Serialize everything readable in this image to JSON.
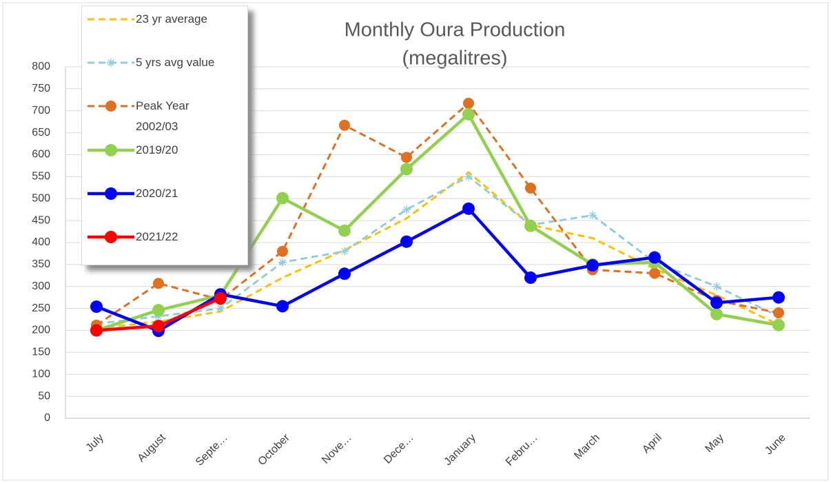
{
  "chart_data": {
    "type": "line",
    "title": [
      "Monthly Oura Production",
      "(megalitres)"
    ],
    "categories": [
      "July",
      "August",
      "Septe…",
      "October",
      "Nove…",
      "Dece…",
      "January",
      "Febru…",
      "March",
      "April",
      "May",
      "June"
    ],
    "ylim": [
      0,
      800
    ],
    "yticks": [
      0,
      50,
      100,
      150,
      200,
      250,
      300,
      350,
      400,
      450,
      500,
      550,
      600,
      650,
      700,
      750,
      800
    ],
    "grid": true,
    "legend": "top-left",
    "series": [
      {
        "name": "23 yr average",
        "color": "#ffc000",
        "dash": true,
        "marker": "none",
        "values": [
          205,
          220,
          243,
          320,
          383,
          455,
          560,
          440,
          410,
          340,
          280,
          213
        ]
      },
      {
        "name": "5 yrs avg value",
        "color": "#92cddc",
        "dash": true,
        "marker": "star",
        "values": [
          215,
          232,
          250,
          355,
          380,
          475,
          550,
          440,
          462,
          355,
          300,
          232
        ]
      },
      {
        "name": "Peak Year 2002/03",
        "color": "#e07020",
        "dash": true,
        "marker": "circle",
        "values": [
          212,
          307,
          270,
          380,
          667,
          594,
          717,
          524,
          338,
          330,
          268,
          240
        ]
      },
      {
        "name": "2019/20",
        "color": "#92d050",
        "dash": false,
        "marker": "circle",
        "values": [
          200,
          246,
          280,
          501,
          427,
          567,
          692,
          438,
          350,
          355,
          237,
          212
        ]
      },
      {
        "name": "2020/21",
        "color": "#0000ff",
        "dash": false,
        "marker": "circle",
        "values": [
          254,
          199,
          282,
          255,
          329,
          402,
          477,
          320,
          348,
          366,
          263,
          275
        ]
      },
      {
        "name": "2021/22",
        "color": "#ff0000",
        "dash": false,
        "marker": "circle",
        "values": [
          200,
          210,
          273,
          null,
          null,
          null,
          null,
          null,
          null,
          null,
          null,
          null
        ]
      }
    ]
  }
}
